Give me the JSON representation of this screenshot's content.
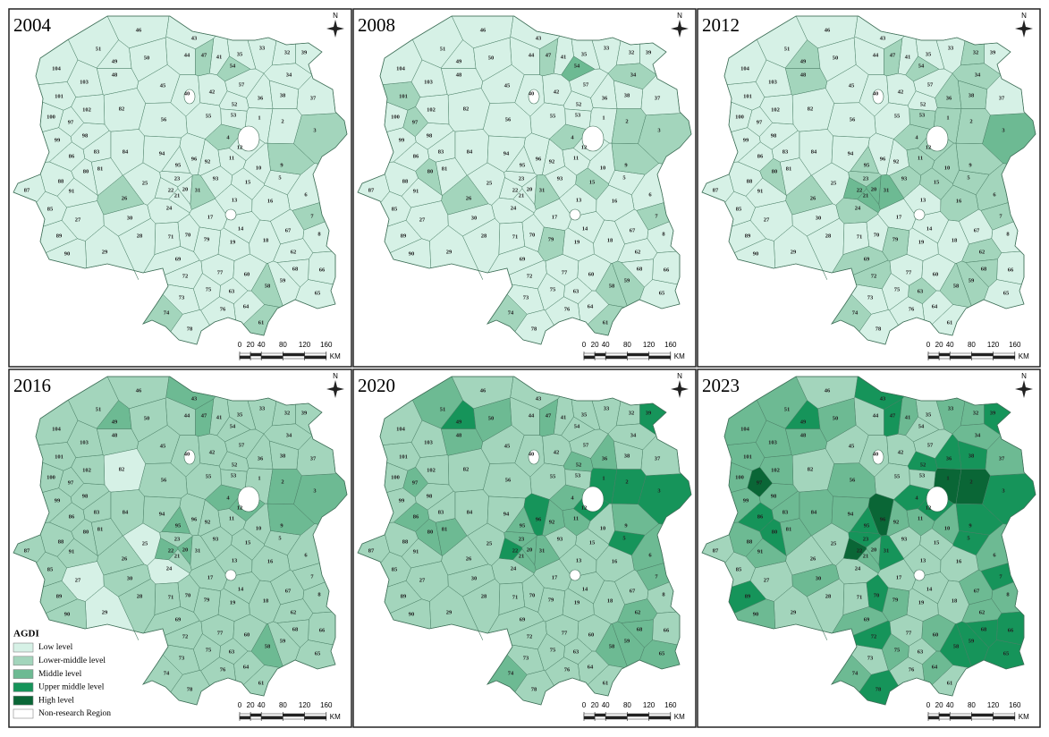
{
  "panels": [
    {
      "year": "2004",
      "base_level": 0,
      "levels": [
        {
          "level": 1,
          "regions": [
            3,
            4,
            7,
            9,
            26,
            31,
            47,
            54,
            58,
            61,
            74
          ]
        }
      ]
    },
    {
      "year": "2008",
      "base_level": 0,
      "levels": [
        {
          "level": 1,
          "regions": [
            2,
            3,
            4,
            7,
            9,
            15,
            26,
            31,
            34,
            47,
            58,
            59,
            61,
            74,
            79,
            80,
            97,
            101
          ]
        },
        {
          "level": 2,
          "regions": [
            54
          ]
        }
      ]
    },
    {
      "year": "2012",
      "base_level": 0,
      "levels": [
        {
          "level": 1,
          "regions": [
            1,
            2,
            4,
            5,
            6,
            7,
            9,
            10,
            11,
            12,
            15,
            16,
            23,
            24,
            26,
            32,
            34,
            36,
            38,
            47,
            48,
            49,
            53,
            54,
            58,
            59,
            62,
            63,
            68,
            69,
            72,
            74,
            79,
            80,
            93,
            95
          ]
        },
        {
          "level": 2,
          "regions": [
            3,
            20,
            21,
            22,
            31
          ]
        }
      ]
    },
    {
      "year": "2016",
      "base_level": 1,
      "levels": [
        {
          "level": 0,
          "regions": [
            24,
            25,
            27,
            29,
            82
          ]
        },
        {
          "level": 2,
          "regions": [
            2,
            3,
            4,
            9,
            12,
            20,
            22,
            43,
            47,
            49,
            58,
            95
          ]
        }
      ]
    },
    {
      "year": "2020",
      "base_level": 1,
      "levels": [
        {
          "level": 2,
          "regions": [
            4,
            6,
            7,
            9,
            11,
            20,
            21,
            23,
            31,
            36,
            47,
            48,
            50,
            51,
            52,
            58,
            59,
            62,
            65,
            68,
            74,
            80,
            81,
            86,
            92,
            95,
            97
          ]
        },
        {
          "level": 3,
          "regions": [
            1,
            2,
            3,
            5,
            12,
            22,
            39,
            49,
            96
          ]
        }
      ]
    },
    {
      "year": "2023",
      "base_level": 2,
      "levels": [
        {
          "level": 1,
          "regions": [
            13,
            14,
            15,
            16,
            17,
            18,
            19,
            24,
            25,
            26,
            27,
            28,
            29,
            35,
            40,
            42,
            44,
            45,
            46,
            53,
            54,
            55,
            57,
            61,
            63,
            71,
            73,
            76,
            77,
            82,
            85,
            87,
            93
          ]
        },
        {
          "level": 3,
          "regions": [
            3,
            4,
            5,
            7,
            9,
            12,
            23,
            31,
            36,
            38,
            39,
            43,
            47,
            49,
            52,
            58,
            59,
            65,
            66,
            68,
            70,
            72,
            78,
            80,
            86,
            89,
            95
          ]
        },
        {
          "level": 4,
          "regions": [
            1,
            2,
            22,
            96,
            97
          ]
        }
      ]
    }
  ],
  "region_labels": [
    1,
    2,
    3,
    4,
    5,
    6,
    7,
    8,
    9,
    10,
    11,
    12,
    13,
    14,
    15,
    16,
    17,
    18,
    19,
    20,
    21,
    22,
    23,
    24,
    25,
    26,
    27,
    28,
    29,
    30,
    31,
    32,
    33,
    34,
    35,
    36,
    37,
    38,
    39,
    40,
    41,
    42,
    43,
    44,
    45,
    46,
    47,
    48,
    49,
    50,
    51,
    52,
    53,
    54,
    55,
    56,
    57,
    58,
    59,
    60,
    61,
    62,
    63,
    64,
    65,
    66,
    67,
    68,
    69,
    70,
    71,
    72,
    73,
    74,
    75,
    76,
    77,
    78,
    79,
    80,
    81,
    82,
    83,
    84,
    85,
    86,
    87,
    88,
    89,
    90,
    91,
    92,
    93,
    94,
    95,
    96,
    97,
    98,
    99,
    100,
    101,
    102,
    103,
    104
  ],
  "scale_bar": {
    "ticks": [
      0,
      20,
      40,
      80,
      120,
      160
    ],
    "unit": "KM"
  },
  "north_label": "N",
  "legend": {
    "title": "AGDI",
    "items": [
      {
        "label": "Low level",
        "color": "#d6f1e6"
      },
      {
        "label": "Lower-middle level",
        "color": "#a3d5bc"
      },
      {
        "label": "Middle level",
        "color": "#6dba93"
      },
      {
        "label": "Upper middle level",
        "color": "#16945a"
      },
      {
        "label": "High level",
        "color": "#0a6636"
      },
      {
        "label": "Non-research Region",
        "color": "#ffffff"
      }
    ]
  }
}
